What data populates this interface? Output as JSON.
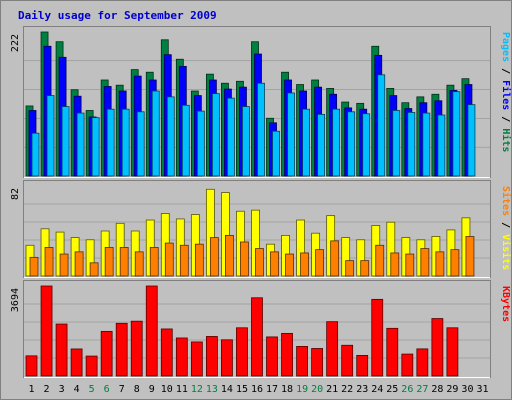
{
  "chart_data": {
    "type": "bar",
    "title": "Daily usage for September 2009",
    "categories": [
      "1",
      "2",
      "3",
      "4",
      "5",
      "6",
      "7",
      "8",
      "9",
      "10",
      "11",
      "12",
      "13",
      "14",
      "15",
      "16",
      "17",
      "18",
      "19",
      "20",
      "21",
      "22",
      "23",
      "24",
      "25",
      "26",
      "27",
      "28",
      "29",
      "30",
      "31"
    ],
    "weekend_days": [
      "5",
      "6",
      "12",
      "13",
      "19",
      "20",
      "26",
      "27"
    ],
    "colors": {
      "background": "#c0c0c0",
      "frame": "#808080",
      "title": "#0000cc",
      "grid": "#888888",
      "hits": "#008040",
      "files": "#0000ff",
      "pages": "#00c0ff",
      "visits": "#ffff00",
      "sites": "#ff8000",
      "kbytes": "#ff0000",
      "weekend_label": "#008040",
      "weekday_label": "#000000"
    },
    "panels": [
      {
        "ymax_label": "222",
        "ylim": [
          0,
          222
        ],
        "grid_lines": 5,
        "legend": [
          {
            "label": "Hits",
            "color": "#008040"
          },
          {
            "label": "Files",
            "color": "#0000ff"
          },
          {
            "label": "Pages",
            "color": "#00c0ff"
          }
        ],
        "series": [
          {
            "name": "Hits",
            "values": [
              108,
              222,
              207,
              133,
              101,
              148,
              140,
              164,
              160,
              210,
              180,
              131,
              157,
              143,
              146,
              207,
              89,
              160,
              141,
              148,
              135,
              114,
              112,
              200,
              135,
              113,
              122,
              126,
              140,
              150,
              0
            ]
          },
          {
            "name": "Files",
            "values": [
              101,
              200,
              183,
              123,
              91,
              138,
              131,
              154,
              148,
              187,
              169,
              124,
              148,
              134,
              137,
              188,
              82,
              148,
              131,
              137,
              126,
              105,
              103,
              186,
              124,
              104,
              113,
              116,
              132,
              141,
              0
            ]
          },
          {
            "name": "Pages",
            "values": [
              66,
              124,
              107,
              97,
              90,
              103,
              103,
              99,
              131,
              122,
              109,
              100,
              127,
              120,
              107,
              143,
              69,
              128,
              103,
              95,
              103,
              99,
              96,
              156,
              101,
              98,
              97,
              94,
              130,
              110,
              0
            ]
          }
        ]
      },
      {
        "ymax_label": "82",
        "ylim": [
          0,
          82
        ],
        "grid_lines": 5,
        "legend": [
          {
            "label": "Visits",
            "color": "#ffff00"
          },
          {
            "label": "Sites",
            "color": "#ff8000"
          }
        ],
        "series": [
          {
            "name": "Visits",
            "values": [
              28,
              43,
              40,
              35,
              33,
              41,
              48,
              41,
              51,
              57,
              52,
              56,
              79,
              76,
              59,
              60,
              29,
              37,
              51,
              39,
              55,
              35,
              33,
              46,
              49,
              35,
              33,
              36,
              42,
              53,
              0
            ]
          },
          {
            "name": "Sites",
            "values": [
              17,
              26,
              20,
              22,
              12,
              26,
              26,
              22,
              26,
              30,
              28,
              29,
              35,
              37,
              31,
              25,
              22,
              20,
              21,
              24,
              32,
              14,
              14,
              28,
              21,
              20,
              25,
              22,
              24,
              36,
              0
            ]
          }
        ]
      },
      {
        "ymax_label": "3694",
        "ylim": [
          0,
          3694
        ],
        "grid_lines": 5,
        "legend": [
          {
            "label": "KBytes",
            "color": "#ff0000"
          }
        ],
        "series": [
          {
            "name": "KBytes",
            "values": [
              828,
              3694,
              2133,
              1110,
              818,
              1832,
              2163,
              2250,
              3694,
              1931,
              1561,
              1398,
              1623,
              1486,
              1979,
              3211,
              1604,
              1749,
              1214,
              1130,
              2230,
              1262,
              845,
              3146,
              1957,
              900,
              1113,
              2358,
              1979,
              0,
              0
            ]
          }
        ]
      }
    ]
  }
}
